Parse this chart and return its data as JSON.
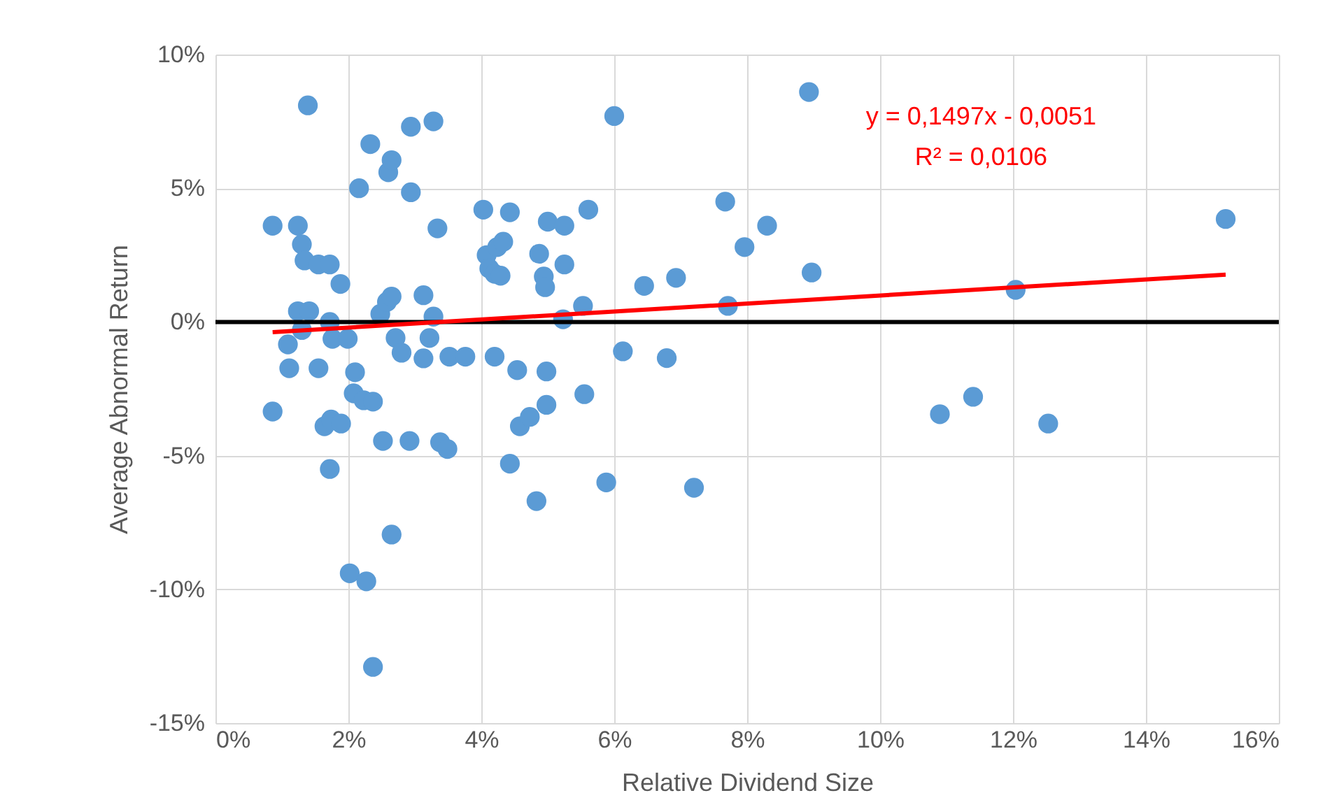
{
  "chart_data": {
    "type": "scatter",
    "xlabel": "Relative Dividend Size",
    "ylabel": "Average Abnormal Return",
    "annotations": [
      "y = 0,1497x - 0,0051",
      "R² = 0,0106"
    ],
    "xlim": [
      0,
      16
    ],
    "ylim": [
      -15,
      10
    ],
    "xticks": [
      {
        "value": 0,
        "label": "0%"
      },
      {
        "value": 2,
        "label": "2%"
      },
      {
        "value": 4,
        "label": "4%"
      },
      {
        "value": 6,
        "label": "6%"
      },
      {
        "value": 8,
        "label": "8%"
      },
      {
        "value": 10,
        "label": "10%"
      },
      {
        "value": 12,
        "label": "12%"
      },
      {
        "value": 14,
        "label": "14%"
      },
      {
        "value": 16,
        "label": "16%"
      }
    ],
    "yticks": [
      {
        "value": -15,
        "label": "-15%"
      },
      {
        "value": -10,
        "label": "-10%"
      },
      {
        "value": -5,
        "label": "-5%"
      },
      {
        "value": 0,
        "label": "0%"
      },
      {
        "value": 5,
        "label": "5%"
      },
      {
        "value": 10,
        "label": "10%"
      }
    ],
    "grid": true,
    "marker": "circle",
    "ref_lines": [
      {
        "axis": "y",
        "value": 0,
        "color": "#000000"
      }
    ],
    "series": [
      {
        "color": "#5b9bd5",
        "x": [
          0.86,
          0.86,
          1.39,
          1.09,
          1.11,
          1.24,
          1.3,
          1.34,
          1.24,
          1.41,
          1.3,
          1.55,
          1.72,
          1.88,
          1.72,
          1.76,
          1.99,
          1.55,
          1.64,
          1.74,
          1.89,
          1.72,
          2.02,
          2.27,
          2.37,
          2.16,
          2.33,
          2.6,
          2.65,
          2.94,
          3.28,
          2.94,
          3.34,
          2.08,
          2.23,
          2.37,
          2.1,
          2.48,
          2.58,
          2.65,
          2.71,
          2.8,
          3.13,
          3.28,
          3.22,
          3.13,
          3.52,
          2.52,
          2.92,
          3.38,
          3.49,
          2.65,
          3.76,
          4.03,
          4.08,
          4.12,
          4.2,
          4.29,
          4.24,
          4.33,
          4.43,
          4.2,
          4.54,
          4.58,
          4.73,
          4.43,
          4.83,
          4.87,
          4.94,
          4.96,
          5.0,
          4.98,
          4.98,
          5.25,
          5.25,
          5.23,
          5.53,
          5.61,
          5.55,
          5.88,
          6.0,
          6.13,
          6.45,
          6.93,
          6.79,
          7.2,
          7.67,
          7.71,
          7.96,
          8.3,
          8.93,
          8.97,
          10.9,
          11.4,
          12.04,
          12.53,
          15.2
        ],
        "values": [
          3.6,
          -3.35,
          8.1,
          -0.84,
          -1.73,
          3.6,
          2.9,
          2.3,
          0.4,
          0.4,
          -0.3,
          2.15,
          2.15,
          1.42,
          0.0,
          -0.63,
          -0.63,
          -1.73,
          -3.9,
          -3.65,
          -3.8,
          -5.5,
          -9.4,
          -9.7,
          -12.9,
          5.0,
          6.65,
          5.6,
          6.05,
          7.3,
          7.5,
          4.85,
          3.5,
          -2.67,
          -2.93,
          -2.98,
          -1.88,
          0.3,
          0.75,
          0.95,
          -0.6,
          -1.15,
          1.0,
          0.2,
          -0.6,
          -1.36,
          -1.3,
          -4.45,
          -4.45,
          -4.5,
          -4.75,
          -7.95,
          -1.3,
          4.2,
          2.5,
          2.0,
          1.8,
          1.73,
          2.8,
          3.0,
          4.1,
          -1.3,
          -1.8,
          -3.9,
          -3.55,
          -5.3,
          -6.7,
          2.55,
          1.7,
          1.3,
          3.75,
          -1.85,
          -3.1,
          3.6,
          2.15,
          0.1,
          0.6,
          4.2,
          -2.7,
          -6.0,
          7.7,
          -1.1,
          1.35,
          1.65,
          -1.35,
          -6.2,
          4.5,
          0.6,
          2.8,
          3.6,
          8.6,
          1.85,
          -3.45,
          -2.8,
          1.2,
          -3.8,
          3.85
        ]
      },
      {
        "type": "line",
        "marker": "none",
        "color": "#ff0000",
        "x": [
          0.86,
          15.2
        ],
        "values": [
          -0.38,
          1.77
        ]
      }
    ]
  }
}
